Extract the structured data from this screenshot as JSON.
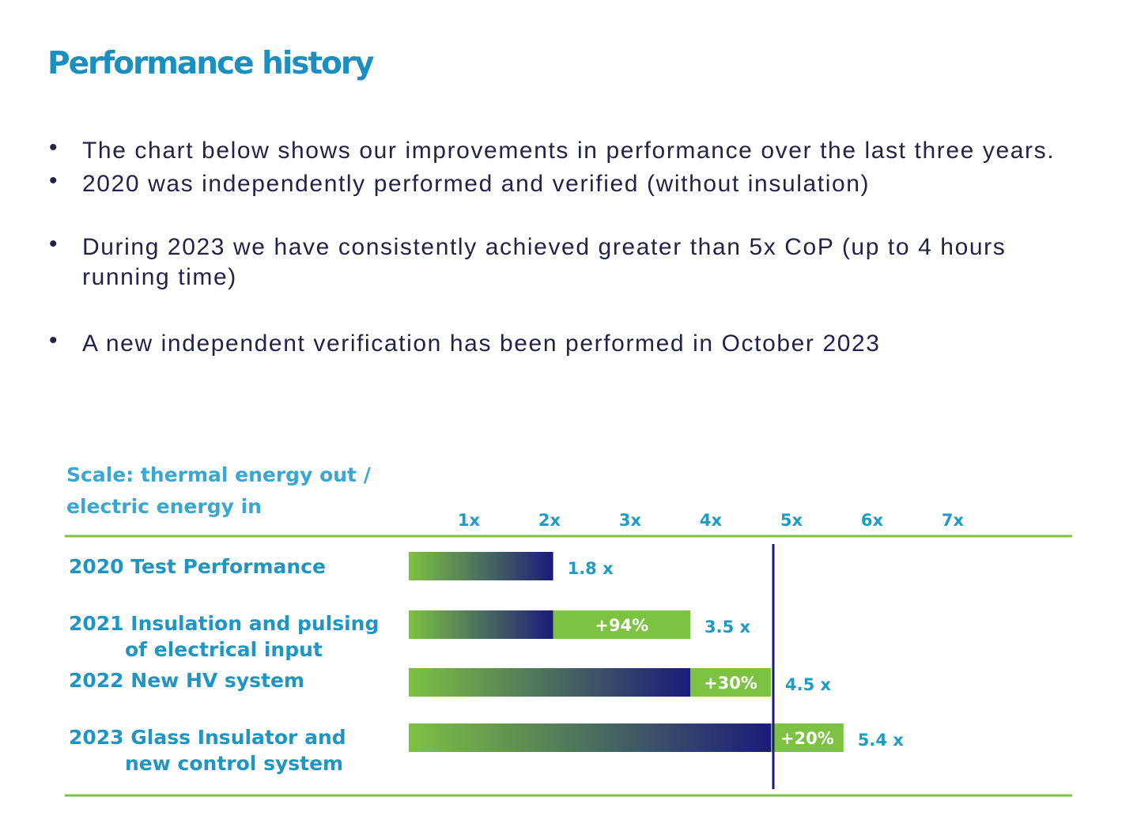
{
  "page_title": "Performance history",
  "bullets": [
    "The chart below shows our improvements in performance   over the last three years.",
    "2020 was independently performed and verified (without insulation)",
    "During 2023 we have consistently achieved greater than 5x CoP (up to 4 hours running time)",
    "A new independent verification has been performed in October 2023"
  ],
  "colors": {
    "title": "#1b8fc0",
    "text": "#23234a",
    "bar_green": "#7dc242",
    "bar_navy": "#1b1b7a",
    "rule_green": "#7dc242",
    "label_blue": "#1f9cc6"
  },
  "chart_data": {
    "type": "bar",
    "orientation": "horizontal",
    "title": "",
    "scale_label": [
      "Scale:  thermal energy out /",
      "electric energy in"
    ],
    "x_ticks": [
      "1x",
      "2x",
      "3x",
      "4x",
      "5x",
      "6x",
      "7x"
    ],
    "x_tick_values": [
      1,
      2,
      3,
      4,
      5,
      6,
      7
    ],
    "xlim": [
      0,
      7.5
    ],
    "reference_line": 4.5,
    "categories": [
      [
        "2020  Test Performance"
      ],
      [
        "2021  Insulation and pulsing",
        "of electrical input"
      ],
      [
        "2022  New HV system"
      ],
      [
        "2023  Glass Insulator and",
        "new control system"
      ]
    ],
    "values": [
      1.8,
      3.5,
      4.5,
      5.4
    ],
    "value_labels": [
      "1.8 x",
      "3.5 x",
      "4.5 x",
      "5.4 x"
    ],
    "previous_values": [
      null,
      1.8,
      3.5,
      4.5
    ],
    "increase_labels": [
      "",
      "+94%",
      "+30%",
      "+20%"
    ],
    "grid": false,
    "legend": "none"
  }
}
